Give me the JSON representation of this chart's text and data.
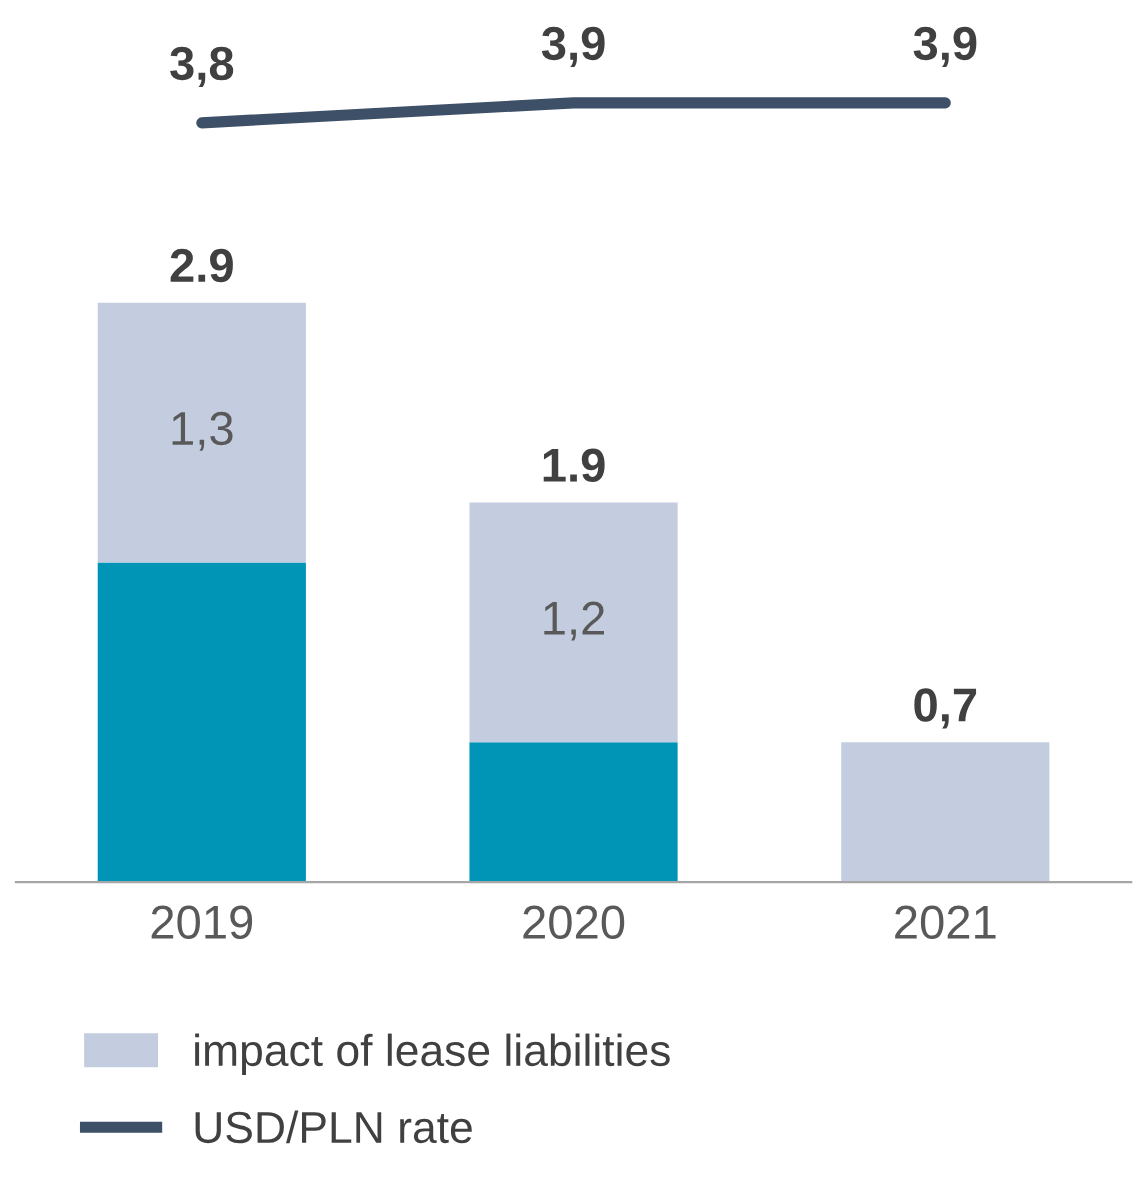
{
  "chart_data": {
    "type": "bar",
    "stacked": true,
    "categories": [
      "2019",
      "2020",
      "2021"
    ],
    "series": [
      {
        "color": "#0095b6",
        "values": [
          1.6,
          0.7,
          null
        ]
      },
      {
        "name": "impact of lease liabilities",
        "color": "#c3cddf",
        "values": [
          1.3,
          1.2,
          0.7
        ],
        "value_labels": [
          "1,3",
          "1,2",
          null
        ]
      },
      {
        "name": "USD/PLN rate",
        "type": "line",
        "color": "#3e4f68",
        "values": [
          3.8,
          3.9,
          3.9
        ],
        "value_labels": [
          "3,8",
          "3,9",
          "3,9"
        ]
      }
    ],
    "totals": [
      "2.9",
      "1.9",
      "0,7"
    ],
    "tick_labels": "x",
    "grid": false,
    "legend": "bottom",
    "marker": "none",
    "line_style": "solid"
  }
}
